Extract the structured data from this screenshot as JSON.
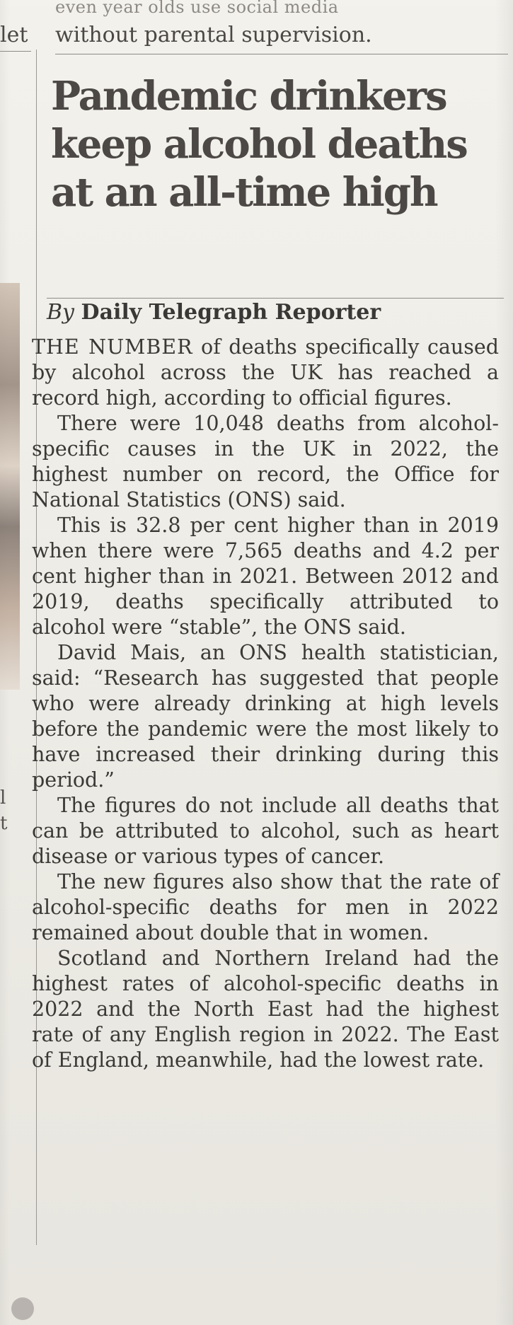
{
  "prev_article": {
    "cut_text": "even year olds use social media",
    "left_fragment": "let",
    "last_line": "without parental supervision."
  },
  "headline": {
    "line1": "Pandemic drinkers",
    "line2": "keep alcohol deaths",
    "line3": "at an all-time high"
  },
  "byline": {
    "by": "By",
    "reporter": "Daily Telegraph Reporter"
  },
  "article": {
    "lead": "THE NUMBER",
    "paragraphs": [
      " of deaths specifically caused by alcohol across the UK has reached a record high, according to official figures.",
      "There were 10,048 deaths from alcohol-specific causes in the UK in 2022, the highest number on record, the Office for National Statistics (ONS) said.",
      "This is 32.8 per cent higher than in 2019 when there were 7,565 deaths and 4.2 per cent higher than in 2021. Between 2012 and 2019, deaths specifically attributed to alcohol were “stable”, the ONS said.",
      "David Mais, an ONS health statistician, said: “Research has suggested that people who were already drinking at high levels before the pandemic were the most likely to have increased their drinking during this period.”",
      "The figures do not include all deaths that can be attributed to alcohol, such as heart disease or various types of cancer.",
      "The new figures also show that the rate of alcohol-specific deaths for men in 2022 remained about double that in women.",
      "Scotland and Northern Ireland had the highest rates of alcohol-specific deaths in 2022 and the North East had the highest rate of any English region in 2022. The East of England, meanwhile, had the lowest rate."
    ]
  },
  "edge_fragments": [
    "l",
    "t"
  ]
}
